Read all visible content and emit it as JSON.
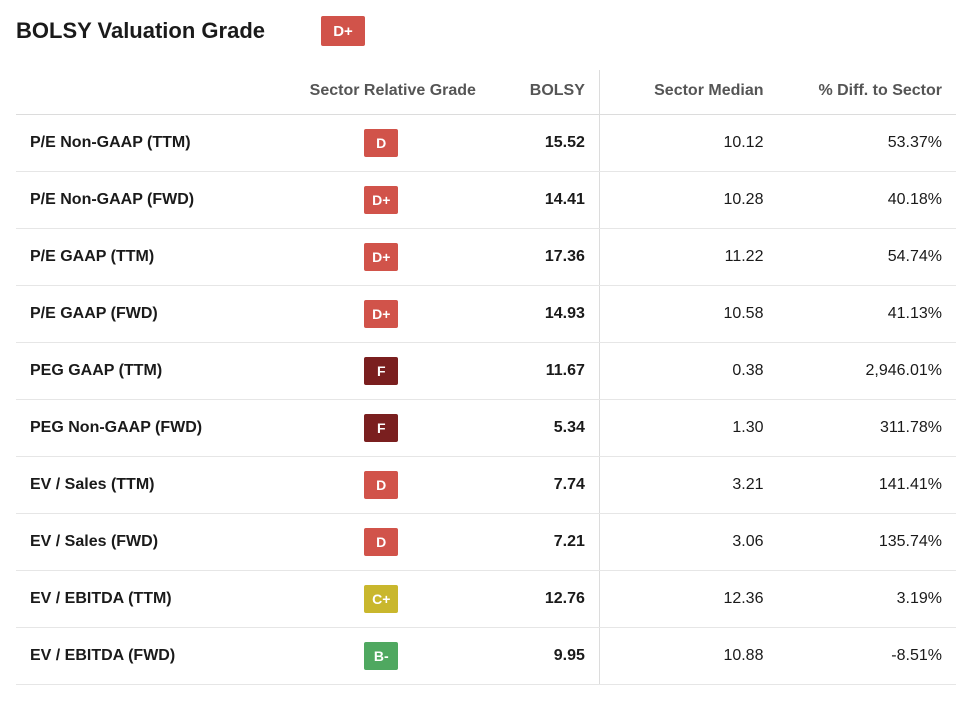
{
  "header": {
    "title": "BOLSY Valuation Grade",
    "overall_grade": "D+",
    "overall_grade_color": "#d1534a"
  },
  "columns": {
    "metric": "",
    "grade": "Sector Relative Grade",
    "bolsy": "BOLSY",
    "median": "Sector Median",
    "diff": "% Diff. to Sector"
  },
  "grade_colors": {
    "D": "#d1534a",
    "D+": "#d1534a",
    "F": "#7a1f1f",
    "C+": "#c9b72d",
    "B-": "#4fa860"
  },
  "rows": [
    {
      "metric": "P/E Non-GAAP (TTM)",
      "grade": "D",
      "bolsy": "15.52",
      "median": "10.12",
      "diff": "53.37%"
    },
    {
      "metric": "P/E Non-GAAP (FWD)",
      "grade": "D+",
      "bolsy": "14.41",
      "median": "10.28",
      "diff": "40.18%"
    },
    {
      "metric": "P/E GAAP (TTM)",
      "grade": "D+",
      "bolsy": "17.36",
      "median": "11.22",
      "diff": "54.74%"
    },
    {
      "metric": "P/E GAAP (FWD)",
      "grade": "D+",
      "bolsy": "14.93",
      "median": "10.58",
      "diff": "41.13%"
    },
    {
      "metric": "PEG GAAP (TTM)",
      "grade": "F",
      "bolsy": "11.67",
      "median": "0.38",
      "diff": "2,946.01%"
    },
    {
      "metric": "PEG Non-GAAP (FWD)",
      "grade": "F",
      "bolsy": "5.34",
      "median": "1.30",
      "diff": "311.78%"
    },
    {
      "metric": "EV / Sales (TTM)",
      "grade": "D",
      "bolsy": "7.74",
      "median": "3.21",
      "diff": "141.41%"
    },
    {
      "metric": "EV / Sales (FWD)",
      "grade": "D",
      "bolsy": "7.21",
      "median": "3.06",
      "diff": "135.74%"
    },
    {
      "metric": "EV / EBITDA (TTM)",
      "grade": "C+",
      "bolsy": "12.76",
      "median": "12.36",
      "diff": "3.19%"
    },
    {
      "metric": "EV / EBITDA (FWD)",
      "grade": "B-",
      "bolsy": "9.95",
      "median": "10.88",
      "diff": "-8.51%"
    }
  ]
}
